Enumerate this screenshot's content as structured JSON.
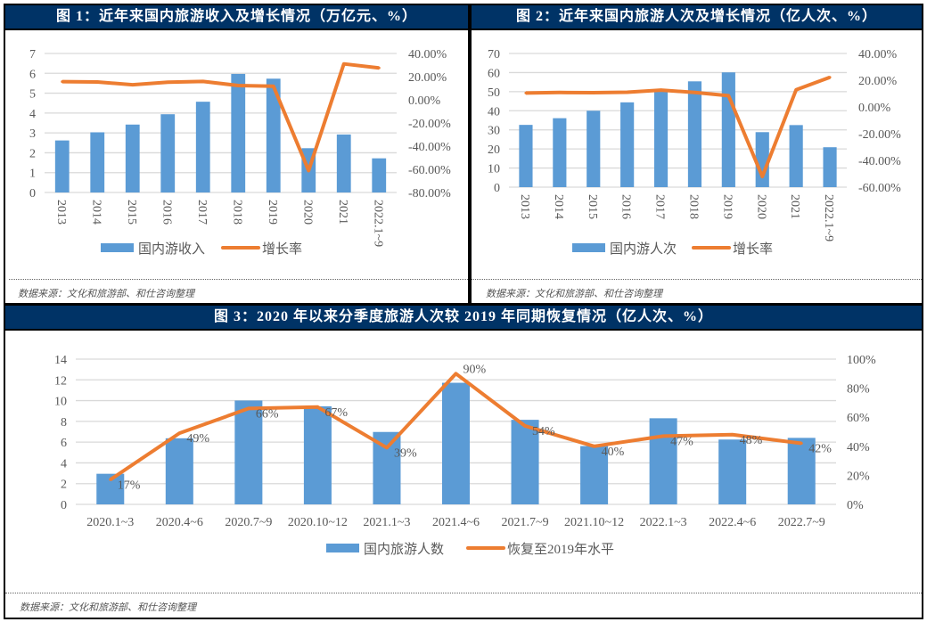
{
  "colors": {
    "header_bg": "#003366",
    "bar": "#5B9BD5",
    "line": "#ED7D31",
    "grid": "#D9D9D9"
  },
  "panels": [
    {
      "title": "图 1：近年来国内旅游收入及增长情况（万亿元、%）",
      "source": "数据来源：文化和旅游部、和仕咨询整理"
    },
    {
      "title": "图 2：近年来国内旅游人次及增长情况（亿人次、%）",
      "source": "数据来源：文化和旅游部、和仕咨询整理"
    },
    {
      "title": "图 3：2020 年以来分季度旅游人次较 2019 年同期恢复情况（亿人次、%）",
      "source": "数据来源：文化和旅游部、和仕咨询整理"
    }
  ],
  "chart_data": [
    {
      "type": "bar+line",
      "categories": [
        "2013",
        "2014",
        "2015",
        "2016",
        "2017",
        "2018",
        "2019",
        "2020",
        "2021",
        "2022.1~9"
      ],
      "series": [
        {
          "name": "国内游收入",
          "type": "bar",
          "axis": "left",
          "values": [
            2.62,
            3.03,
            3.42,
            3.94,
            4.57,
            5.97,
            5.73,
            2.23,
            2.92,
            1.72
          ]
        },
        {
          "name": "增长率",
          "type": "line",
          "axis": "right",
          "values": [
            15.7,
            15.4,
            13.0,
            15.2,
            15.9,
            12.3,
            11.7,
            -61.1,
            31.0,
            27.5
          ]
        }
      ],
      "left_axis": {
        "ylim": [
          0,
          7
        ],
        "ticks": [
          "0",
          "1",
          "2",
          "3",
          "4",
          "5",
          "6",
          "7"
        ]
      },
      "right_axis": {
        "ylim": [
          -80,
          40
        ],
        "ticks": [
          "-80.00%",
          "-60.00%",
          "-40.00%",
          "-20.00%",
          "0.00%",
          "20.00%",
          "40.00%"
        ]
      },
      "x_labels_rotated": true,
      "grid": true,
      "legend": "bottom"
    },
    {
      "type": "bar+line",
      "categories": [
        "2013",
        "2014",
        "2015",
        "2016",
        "2017",
        "2018",
        "2019",
        "2020",
        "2021",
        "2022.1~9"
      ],
      "series": [
        {
          "name": "国内游人次",
          "type": "bar",
          "axis": "left",
          "values": [
            32.6,
            36.1,
            40.0,
            44.4,
            50.0,
            55.4,
            60.1,
            28.8,
            32.5,
            20.9
          ]
        },
        {
          "name": "增长率",
          "type": "line",
          "axis": "right",
          "values": [
            10.4,
            10.8,
            10.7,
            11.0,
            12.6,
            10.8,
            8.4,
            -52.1,
            12.8,
            22.2
          ]
        }
      ],
      "left_axis": {
        "ylim": [
          0,
          70
        ],
        "ticks": [
          "0",
          "10",
          "20",
          "30",
          "40",
          "50",
          "60",
          "70"
        ]
      },
      "right_axis": {
        "ylim": [
          -60,
          40
        ],
        "ticks": [
          "-60.00%",
          "-40.00%",
          "-20.00%",
          "0.00%",
          "20.00%",
          "40.00%"
        ]
      },
      "x_labels_rotated": true,
      "grid": true,
      "legend": "bottom"
    },
    {
      "type": "bar+line",
      "categories": [
        "2020.1~3",
        "2020.4~6",
        "2020.7~9",
        "2020.10~12",
        "2021.1~3",
        "2021.4~6",
        "2021.7~9",
        "2021.10~12",
        "2022.1~3",
        "2022.4~6",
        "2022.7~9"
      ],
      "series": [
        {
          "name": "国内旅游人数",
          "type": "bar",
          "axis": "left",
          "values": [
            2.95,
            6.37,
            10.01,
            9.45,
            6.98,
            11.72,
            8.15,
            5.62,
            8.3,
            6.25,
            6.41
          ]
        },
        {
          "name": "恢复至2019年水平",
          "type": "line",
          "axis": "right",
          "values": [
            17,
            49,
            66,
            67,
            39,
            90,
            54,
            40,
            47,
            48,
            42
          ],
          "data_labels": [
            "17%",
            "49%",
            "66%",
            "67%",
            "39%",
            "90%",
            "54%",
            "40%",
            "47%",
            "48%",
            "42%"
          ]
        }
      ],
      "left_axis": {
        "ylim": [
          0,
          14
        ],
        "ticks": [
          "0",
          "2",
          "4",
          "6",
          "8",
          "10",
          "12",
          "14"
        ]
      },
      "right_axis": {
        "ylim": [
          0,
          100
        ],
        "ticks": [
          "0%",
          "20%",
          "40%",
          "60%",
          "80%",
          "100%"
        ]
      },
      "x_labels_rotated": false,
      "grid": true,
      "legend": "bottom"
    }
  ]
}
